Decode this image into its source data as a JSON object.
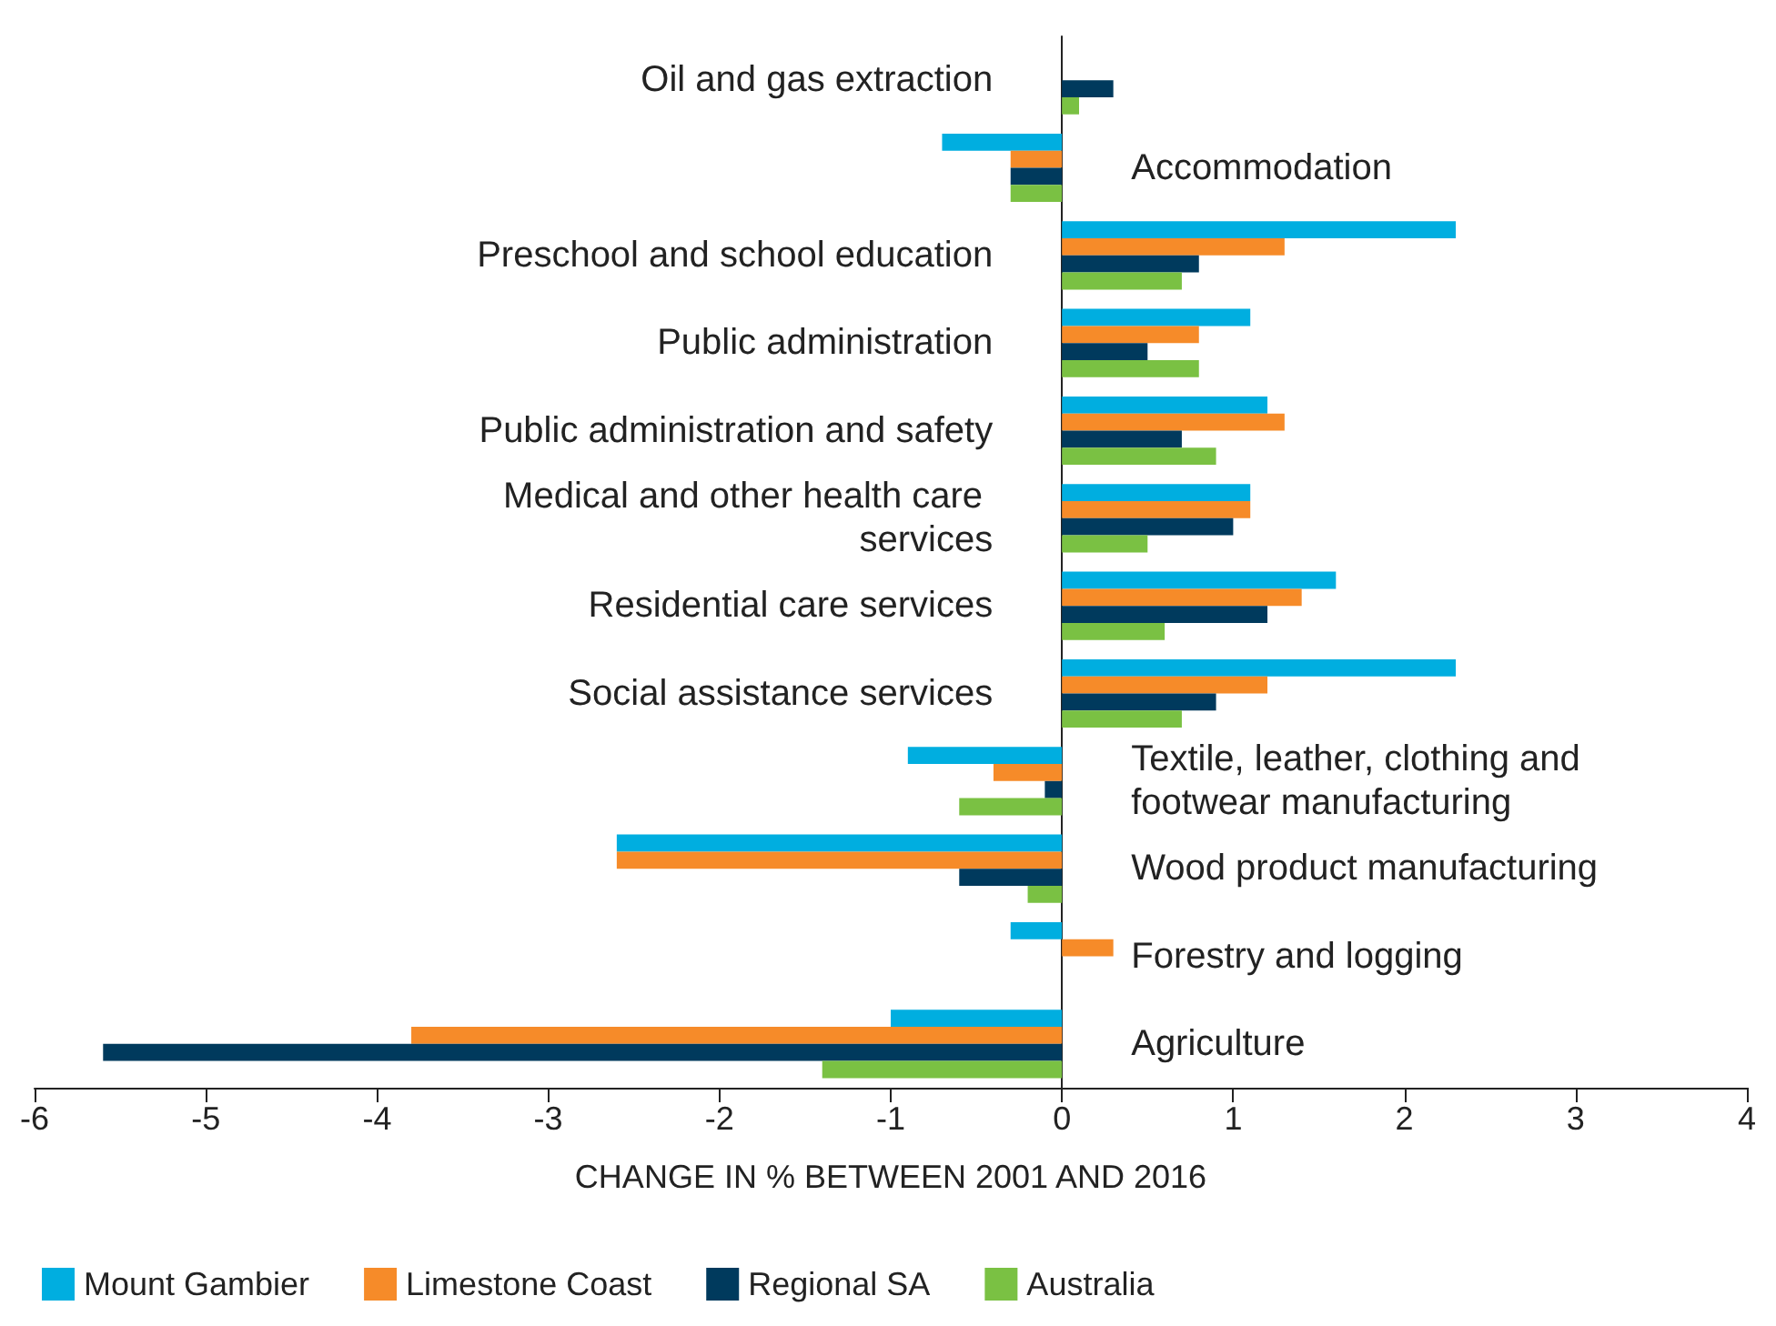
{
  "chart_data": {
    "type": "bar",
    "orientation": "horizontal",
    "xlabel": "CHANGE IN % BETWEEN 2001 AND 2016",
    "categories": [
      "Oil and gas extraction",
      "Accommodation",
      "Preschool and school education",
      "Public administration",
      "Public administration and safety",
      "Medical and other health care services",
      "Residential care services",
      "Social assistance services",
      "Textile, leather, clothing and footwear manufacturing",
      "Wood product manufacturing",
      "Forestry and logging",
      "Agriculture"
    ],
    "series": [
      {
        "name": "Mount Gambier",
        "color": "#00aee0",
        "values": [
          null,
          -0.7,
          2.3,
          1.1,
          1.2,
          1.1,
          1.6,
          2.3,
          -0.9,
          -2.6,
          -0.3,
          -1.0
        ]
      },
      {
        "name": "Limestone Coast",
        "color": "#f68b29",
        "values": [
          null,
          -0.3,
          1.3,
          0.8,
          1.3,
          1.1,
          1.4,
          1.2,
          -0.4,
          -2.6,
          0.3,
          -3.8
        ]
      },
      {
        "name": "Regional SA",
        "color": "#003a5d",
        "values": [
          0.3,
          -0.3,
          0.8,
          0.5,
          0.7,
          1.0,
          1.2,
          0.9,
          -0.1,
          -0.6,
          null,
          -5.6
        ]
      },
      {
        "name": "Australia",
        "color": "#7ac143",
        "values": [
          0.1,
          -0.3,
          0.7,
          0.8,
          0.9,
          0.5,
          0.6,
          0.7,
          -0.6,
          -0.2,
          null,
          -1.4
        ]
      }
    ],
    "xlim": [
      -6,
      4
    ],
    "xticks": [
      -6,
      -5,
      -4,
      -3,
      -2,
      -1,
      0,
      1,
      2,
      3,
      4
    ],
    "grid": false,
    "legend": "bottom left"
  }
}
